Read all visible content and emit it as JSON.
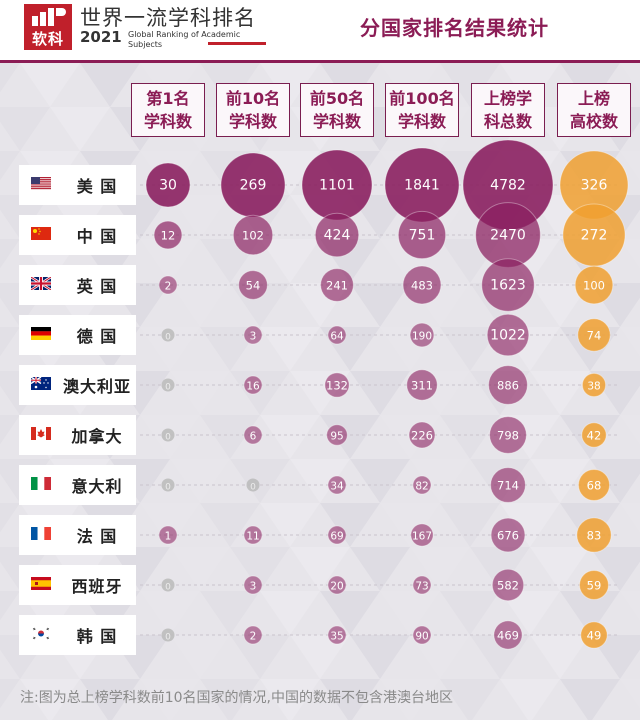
{
  "header": {
    "logo_text": "软科",
    "brand_title": "世界一流学科排名",
    "brand_year": "2021",
    "brand_sub_line1": "Global Ranking of Academic",
    "brand_sub_line2": "Subjects",
    "page_title": "分国家排名结果统计"
  },
  "columns": [
    {
      "line1": "第1名",
      "line2": "学科数"
    },
    {
      "line1": "前10名",
      "line2": "学科数"
    },
    {
      "line1": "前50名",
      "line2": "学科数"
    },
    {
      "line1": "前100名",
      "line2": "学科数"
    },
    {
      "line1": "上榜学",
      "line2": "科总数"
    },
    {
      "line1": "上榜",
      "line2": "高校数"
    }
  ],
  "rows": [
    {
      "country": "美 国",
      "flag": "us-flag-icon"
    },
    {
      "country": "中 国",
      "flag": "cn-flag-icon"
    },
    {
      "country": "英 国",
      "flag": "uk-flag-icon"
    },
    {
      "country": "德 国",
      "flag": "de-flag-icon"
    },
    {
      "country": "澳大利亚",
      "flag": "au-flag-icon"
    },
    {
      "country": "加拿大",
      "flag": "ca-flag-icon"
    },
    {
      "country": "意大利",
      "flag": "it-flag-icon"
    },
    {
      "country": "法 国",
      "flag": "fr-flag-icon"
    },
    {
      "country": "西班牙",
      "flag": "es-flag-icon"
    },
    {
      "country": "韩 国",
      "flag": "kr-flag-icon"
    }
  ],
  "colors": {
    "subject_bubble": "#8b2060",
    "university_bubble": "#f0a030",
    "zero_bubble": "#bdbdbd",
    "header_accent": "#8b1c55"
  },
  "chart_data": {
    "type": "bubble-table",
    "rows": [
      "美 国",
      "中 国",
      "英 国",
      "德 国",
      "澳大利亚",
      "加拿大",
      "意大利",
      "法 国",
      "西班牙",
      "韩 国"
    ],
    "columns": [
      "第1名学科数",
      "前10名学科数",
      "前50名学科数",
      "前100名学科数",
      "上榜学科总数",
      "上榜高校数"
    ],
    "values": [
      [
        30,
        269,
        1101,
        1841,
        4782,
        326
      ],
      [
        12,
        102,
        424,
        751,
        2470,
        272
      ],
      [
        2,
        54,
        241,
        483,
        1623,
        100
      ],
      [
        0,
        3,
        64,
        190,
        1022,
        74
      ],
      [
        0,
        16,
        132,
        311,
        886,
        38
      ],
      [
        0,
        6,
        95,
        226,
        798,
        42
      ],
      [
        0,
        0,
        34,
        82,
        714,
        68
      ],
      [
        1,
        11,
        69,
        167,
        676,
        83
      ],
      [
        0,
        3,
        20,
        73,
        582,
        59
      ],
      [
        0,
        2,
        35,
        90,
        469,
        49
      ]
    ],
    "labels": [
      [
        "30",
        "269",
        "1101",
        "1841",
        "4782",
        "326"
      ],
      [
        "12",
        "102",
        "424",
        "751",
        "2470",
        "272"
      ],
      [
        "2",
        "54",
        "241",
        "483",
        "1623",
        "100"
      ],
      [
        "0",
        "3",
        "64",
        "190",
        "1022",
        "74"
      ],
      [
        "0",
        "16",
        "132",
        "311",
        "886",
        "38"
      ],
      [
        "0",
        "6",
        "95",
        "226",
        "798",
        "42"
      ],
      [
        "0",
        "0",
        "34",
        "82",
        "714",
        "68"
      ],
      [
        "1",
        "11",
        "69",
        "167",
        "676",
        "83"
      ],
      [
        "0",
        "3",
        "20",
        "73",
        "582",
        "59"
      ],
      [
        "0",
        "2",
        "35",
        "90",
        "469",
        "49"
      ]
    ]
  },
  "footnote": "注:图为总上榜学科数前10名国家的情况,中国的数据不包含港澳台地区"
}
